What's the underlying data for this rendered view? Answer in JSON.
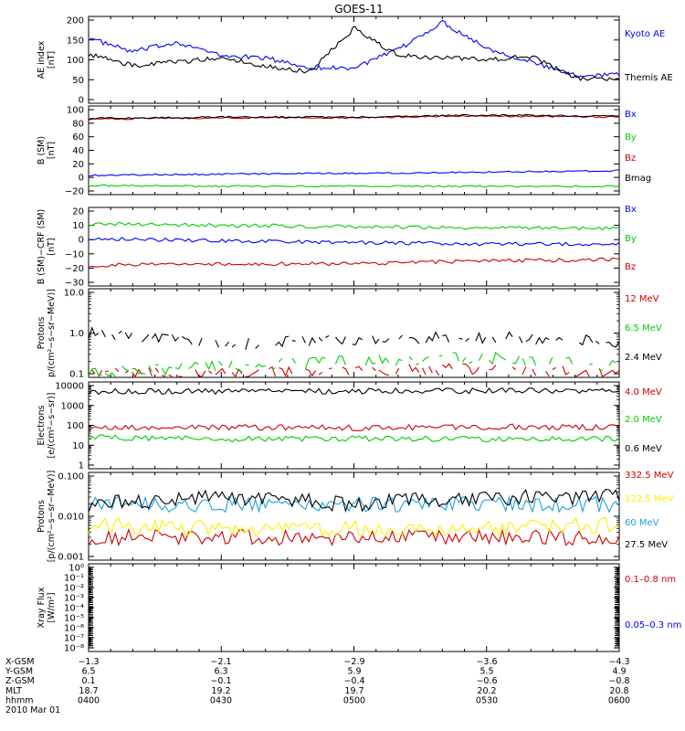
{
  "title": "GOES-11",
  "panels": [
    {
      "ylabel": [
        "AE index",
        "[nT]"
      ],
      "yticks": [
        "200",
        "150",
        "100",
        "50",
        "0"
      ],
      "legend": [
        {
          "label": "Kyoto AE",
          "color": "#0000ff"
        },
        {
          "label": "Themis AE",
          "color": "#000000"
        }
      ]
    },
    {
      "ylabel": [
        "B (SM)",
        "[nT]"
      ],
      "yticks": [
        "100",
        "80",
        "60",
        "40",
        "20",
        "0",
        "−20"
      ],
      "legend": [
        {
          "label": "Bx",
          "color": "#0000ff"
        },
        {
          "label": "By",
          "color": "#00cc00"
        },
        {
          "label": "Bz",
          "color": "#cc0000"
        },
        {
          "label": "Bmag",
          "color": "#000000"
        }
      ]
    },
    {
      "ylabel": [
        "B (SM)−CRF (SM)",
        "[nT]"
      ],
      "yticks": [
        "20",
        "10",
        "0",
        "−10",
        "−20",
        "−30"
      ],
      "legend": [
        {
          "label": "Bx",
          "color": "#0000ff"
        },
        {
          "label": "By",
          "color": "#00cc00"
        },
        {
          "label": "Bz",
          "color": "#cc0000"
        }
      ]
    },
    {
      "ylabel": [
        "Protons",
        "p/(cm²−s−sr−MeV)]"
      ],
      "yticks": [
        "10.0",
        "1.0",
        "0.1"
      ],
      "legend": [
        {
          "label": "12 MeV",
          "color": "#cc0000"
        },
        {
          "label": "6.5 MeV",
          "color": "#00cc00"
        },
        {
          "label": "2.4 MeV",
          "color": "#000000"
        }
      ]
    },
    {
      "ylabel": [
        "Electrons",
        "[e/(cm²−s−sr)]"
      ],
      "yticks": [
        "10000",
        "1000",
        "100",
        "10",
        "1"
      ],
      "legend": [
        {
          "label": "4.0 MeV",
          "color": "#cc0000"
        },
        {
          "label": "2.0 MeV",
          "color": "#00cc00"
        },
        {
          "label": "0.6 MeV",
          "color": "#000000"
        }
      ]
    },
    {
      "ylabel": [
        "Protons",
        "[p/(cm²−s−sr−MeV)]"
      ],
      "yticks": [
        "0.100",
        "0.010",
        "0.001"
      ],
      "legend": [
        {
          "label": "332.5 MeV",
          "color": "#cc0000"
        },
        {
          "label": "122.5 MeV",
          "color": "#ffee00"
        },
        {
          "label": "60 MeV",
          "color": "#1ea0dc"
        },
        {
          "label": "27.5 MeV",
          "color": "#000000"
        }
      ]
    },
    {
      "ylabel": [
        "Xray Flux",
        "[W/m²]"
      ],
      "yticks": [
        "10⁰",
        "10⁻¹",
        "10⁻²",
        "10⁻³",
        "10⁻⁴",
        "10⁻⁵",
        "10⁻⁶",
        "10⁻⁷",
        "10⁻⁸"
      ],
      "legend": [
        {
          "label": "0.1–0.8 nm",
          "color": "#cc0000"
        },
        {
          "label": "0.05–0.3 nm",
          "color": "#0000ff"
        }
      ]
    }
  ],
  "xaxis": {
    "rows": [
      {
        "label": "X-GSM",
        "values": [
          "−1.3",
          "−2.1",
          "−2.9",
          "−3.6",
          "−4.3"
        ]
      },
      {
        "label": "Y-GSM",
        "values": [
          "6.5",
          "6.3",
          "5.9",
          "5.5",
          "4.9"
        ]
      },
      {
        "label": "Z-GSM",
        "values": [
          "0.1",
          "−0.1",
          "−0.4",
          "−0.6",
          "−0.8"
        ]
      },
      {
        "label": "MLT",
        "values": [
          "18.7",
          "19.2",
          "19.7",
          "20.2",
          "20.8"
        ]
      },
      {
        "label": "hhmm",
        "values": [
          "0400",
          "0430",
          "0500",
          "0530",
          "0600"
        ]
      }
    ],
    "date": "2010 Mar 01"
  },
  "chart_data": [
    {
      "type": "line",
      "title": "GOES-11",
      "ylabel": "AE index [nT]",
      "ylim": [
        0,
        200
      ],
      "x": [
        "04:00",
        "04:10",
        "04:20",
        "04:30",
        "04:40",
        "04:50",
        "05:00",
        "05:10",
        "05:20",
        "05:30",
        "05:40",
        "05:50",
        "06:00"
      ],
      "series": [
        {
          "name": "Kyoto AE",
          "values": [
            155,
            120,
            145,
            110,
            105,
            80,
            80,
            125,
            195,
            130,
            95,
            60,
            65
          ]
        },
        {
          "name": "Themis AE",
          "values": [
            115,
            85,
            95,
            105,
            85,
            70,
            180,
            110,
            105,
            100,
            110,
            55,
            50
          ]
        }
      ]
    },
    {
      "type": "line",
      "ylabel": "B (SM) [nT]",
      "ylim": [
        -20,
        100
      ],
      "x": [
        "04:00",
        "04:30",
        "05:00",
        "05:30",
        "06:00"
      ],
      "series": [
        {
          "name": "Bx",
          "values": [
            3,
            5,
            6,
            8,
            10
          ]
        },
        {
          "name": "By",
          "values": [
            -12,
            -13,
            -13,
            -13,
            -13
          ]
        },
        {
          "name": "Bz",
          "values": [
            86,
            88,
            88,
            91,
            89
          ]
        },
        {
          "name": "Bmag",
          "values": [
            87,
            89,
            89,
            92,
            90
          ]
        }
      ]
    },
    {
      "type": "line",
      "ylabel": "B (SM)-CRF (SM) [nT]",
      "ylim": [
        -30,
        20
      ],
      "x": [
        "04:00",
        "04:30",
        "05:00",
        "05:30",
        "06:00"
      ],
      "series": [
        {
          "name": "Bx",
          "values": [
            1,
            -1,
            -2,
            -3,
            -3
          ]
        },
        {
          "name": "By",
          "values": [
            11,
            10,
            9,
            8,
            8
          ]
        },
        {
          "name": "Bz",
          "values": [
            -18,
            -17,
            -17,
            -15,
            -14
          ]
        }
      ]
    },
    {
      "type": "line",
      "ylabel": "Protons [p/(cm2-s-sr-MeV)]",
      "ylim": [
        0.1,
        10
      ],
      "scale": "log",
      "x": [
        "04:00",
        "04:30",
        "05:00",
        "05:30",
        "06:00"
      ],
      "series": [
        {
          "name": "12 MeV",
          "values": [
            0.1,
            0.1,
            0.12,
            0.13,
            0.1
          ]
        },
        {
          "name": "6.5 MeV",
          "values": [
            0.1,
            0.15,
            0.2,
            0.25,
            0.15
          ]
        },
        {
          "name": "2.4 MeV",
          "values": [
            1.0,
            0.5,
            0.7,
            0.8,
            0.6
          ]
        }
      ]
    },
    {
      "type": "line",
      "ylabel": "Electrons [e/(cm2-s-sr)]",
      "ylim": [
        1,
        10000
      ],
      "scale": "log",
      "x": [
        "04:00",
        "04:30",
        "05:00",
        "05:30",
        "06:00"
      ],
      "series": [
        {
          "name": "4.0 MeV",
          "values": [
            70,
            80,
            75,
            85,
            80
          ]
        },
        {
          "name": "2.0 MeV",
          "values": [
            25,
            20,
            22,
            20,
            22
          ]
        },
        {
          "name": "0.6 MeV",
          "values": [
            5000,
            5200,
            5300,
            5500,
            5300
          ]
        }
      ]
    },
    {
      "type": "line",
      "ylabel": "Protons [p/(cm2-s-sr-MeV)]",
      "ylim": [
        0.001,
        0.1
      ],
      "scale": "log",
      "x": [
        "04:00",
        "04:30",
        "05:00",
        "05:30",
        "06:00"
      ],
      "series": [
        {
          "name": "332.5 MeV",
          "values": [
            0.003,
            0.003,
            0.003,
            0.003,
            0.003
          ]
        },
        {
          "name": "122.5 MeV",
          "values": [
            0.006,
            0.005,
            0.005,
            0.005,
            0.006
          ]
        },
        {
          "name": "60 MeV",
          "values": [
            0.02,
            0.02,
            0.02,
            0.02,
            0.02
          ]
        },
        {
          "name": "27.5 MeV",
          "values": [
            0.02,
            0.03,
            0.02,
            0.03,
            0.03
          ]
        }
      ]
    },
    {
      "type": "line",
      "ylabel": "Xray Flux [W/m2]",
      "ylim": [
        1e-08,
        1
      ],
      "scale": "log",
      "x": [],
      "series": [
        {
          "name": "0.1-0.8 nm",
          "values": []
        },
        {
          "name": "0.05-0.3 nm",
          "values": []
        }
      ]
    }
  ]
}
